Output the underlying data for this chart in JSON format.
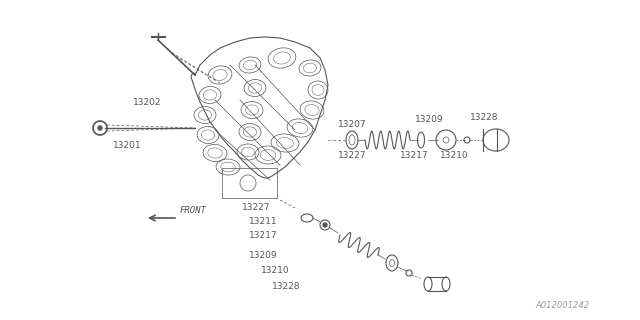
{
  "bg_color": "#ffffff",
  "line_color": "#555555",
  "fig_width": 6.4,
  "fig_height": 3.2,
  "dpi": 100,
  "watermark": "A012001242",
  "front_label": "FRONT"
}
